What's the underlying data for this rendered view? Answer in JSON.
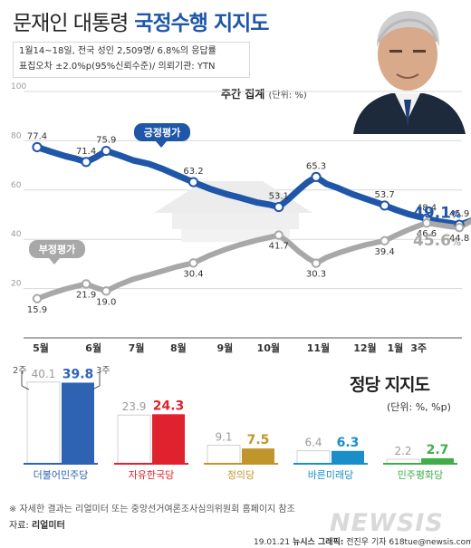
{
  "header": {
    "title_part1": "문재인 대통령",
    "title_part2": "국정수행 지지도",
    "info_line1": "1월14~18일, 전국 성인 2,509명/ 6.8%의 응답률",
    "info_line2": "표집오차 ±2.0%p(95%신뢰수준)/ 의뢰기관: YTN",
    "weekly_label": "주간 집계",
    "weekly_unit": "(단위: %)"
  },
  "colors": {
    "approve": "#1f56a8",
    "disapprove": "#a8a8a8",
    "grid": "#d9d9d9"
  },
  "chart_data": [
    {
      "type": "line",
      "ylim": [
        0,
        100
      ],
      "yticks": [
        20,
        40,
        60,
        80,
        100
      ],
      "xticks": [
        "5월",
        "6월",
        "7월",
        "8월",
        "9월",
        "10월",
        "11월",
        "12월",
        "1월",
        "3주"
      ],
      "grid": true,
      "series": [
        {
          "name": "긍정평가",
          "color": "#1f56a8",
          "labeled": [
            {
              "x": 0.0,
              "y": 77.4,
              "label": "77.4"
            },
            {
              "x": 1.05,
              "y": 71.4,
              "label": "71.4"
            },
            {
              "x": 1.48,
              "y": 75.9,
              "label": "75.9"
            },
            {
              "x": 3.35,
              "y": 63.2,
              "label": "63.2"
            },
            {
              "x": 5.18,
              "y": 53.1,
              "label": "53.1"
            },
            {
              "x": 5.98,
              "y": 65.3,
              "label": "65.3"
            },
            {
              "x": 7.45,
              "y": 53.7,
              "label": "53.7"
            },
            {
              "x": 8.35,
              "y": 48.4,
              "label": "48.4"
            },
            {
              "x": 9.05,
              "y": 45.9,
              "label": "45.9"
            },
            {
              "x": 9.58,
              "y": 49.6,
              "label": "49.6"
            },
            {
              "x": 9.82,
              "y": 49.1,
              "label": "49.1"
            }
          ],
          "values": [
            [
              0.0,
              77.4
            ],
            [
              0.3,
              75.5
            ],
            [
              0.6,
              73.8
            ],
            [
              0.85,
              72.6
            ],
            [
              1.05,
              71.4
            ],
            [
              1.25,
              73.2
            ],
            [
              1.48,
              75.9
            ],
            [
              1.75,
              74.2
            ],
            [
              2.05,
              72.1
            ],
            [
              2.4,
              70.6
            ],
            [
              2.7,
              68.5
            ],
            [
              3.0,
              66.0
            ],
            [
              3.35,
              63.2
            ],
            [
              3.7,
              60.5
            ],
            [
              4.05,
              58.4
            ],
            [
              4.35,
              56.9
            ],
            [
              4.7,
              55.0
            ],
            [
              5.0,
              54.0
            ],
            [
              5.18,
              53.1
            ],
            [
              5.4,
              56.5
            ],
            [
              5.6,
              60.0
            ],
            [
              5.8,
              63.2
            ],
            [
              5.98,
              65.3
            ],
            [
              6.2,
              62.5
            ],
            [
              6.45,
              60.8
            ],
            [
              6.75,
              58.4
            ],
            [
              7.05,
              56.4
            ],
            [
              7.3,
              54.8
            ],
            [
              7.45,
              53.7
            ],
            [
              7.7,
              51.9
            ],
            [
              7.95,
              50.3
            ],
            [
              8.15,
              49.3
            ],
            [
              8.35,
              48.4
            ],
            [
              8.6,
              47.3
            ],
            [
              8.85,
              46.6
            ],
            [
              9.05,
              45.9
            ],
            [
              9.3,
              47.5
            ],
            [
              9.58,
              49.6
            ],
            [
              9.82,
              49.1
            ]
          ]
        },
        {
          "name": "부정평가",
          "color": "#a8a8a8",
          "labeled": [
            {
              "x": 0.0,
              "y": 15.9,
              "label": "15.9"
            },
            {
              "x": 1.05,
              "y": 21.9,
              "label": "21.9"
            },
            {
              "x": 1.48,
              "y": 19.0,
              "label": "19.0"
            },
            {
              "x": 3.35,
              "y": 30.4,
              "label": "30.4"
            },
            {
              "x": 5.18,
              "y": 41.7,
              "label": "41.7"
            },
            {
              "x": 5.98,
              "y": 30.3,
              "label": "30.3"
            },
            {
              "x": 7.45,
              "y": 39.4,
              "label": "39.4"
            },
            {
              "x": 8.35,
              "y": 46.6,
              "label": "46.6"
            },
            {
              "x": 9.05,
              "y": 44.8,
              "label": "44.8"
            },
            {
              "x": 9.58,
              "y": 49.7,
              "label": "49.7"
            },
            {
              "x": 9.82,
              "y": 45.6,
              "label": "45.6"
            }
          ],
          "values": [
            [
              0.0,
              15.9
            ],
            [
              0.3,
              18.0
            ],
            [
              0.6,
              19.8
            ],
            [
              0.85,
              21.0
            ],
            [
              1.05,
              21.9
            ],
            [
              1.25,
              20.4
            ],
            [
              1.48,
              19.0
            ],
            [
              1.75,
              21.5
            ],
            [
              2.05,
              23.8
            ],
            [
              2.4,
              25.6
            ],
            [
              2.7,
              27.2
            ],
            [
              3.0,
              28.9
            ],
            [
              3.35,
              30.4
            ],
            [
              3.7,
              33.5
            ],
            [
              4.05,
              36.0
            ],
            [
              4.35,
              37.8
            ],
            [
              4.7,
              39.6
            ],
            [
              5.0,
              40.9
            ],
            [
              5.18,
              41.7
            ],
            [
              5.4,
              38.6
            ],
            [
              5.6,
              35.2
            ],
            [
              5.8,
              32.4
            ],
            [
              5.98,
              30.3
            ],
            [
              6.2,
              32.6
            ],
            [
              6.45,
              34.4
            ],
            [
              6.75,
              36.2
            ],
            [
              7.05,
              37.8
            ],
            [
              7.3,
              38.8
            ],
            [
              7.45,
              39.4
            ],
            [
              7.7,
              41.7
            ],
            [
              7.95,
              43.8
            ],
            [
              8.15,
              45.3
            ],
            [
              8.35,
              46.6
            ],
            [
              8.6,
              45.9
            ],
            [
              8.85,
              45.2
            ],
            [
              9.05,
              44.8
            ],
            [
              9.3,
              47.4
            ],
            [
              9.58,
              49.7
            ],
            [
              9.82,
              45.6
            ]
          ]
        }
      ],
      "annotations": {
        "approve_label": "긍정평가",
        "disapprove_label": "부정평가",
        "latest_approve": "49.1",
        "latest_disapprove": "45.6",
        "percent_sign": "%"
      }
    },
    {
      "type": "bar",
      "title": "정당 지지도",
      "unit": "(단위: %, %p)",
      "period_labels": [
        "2주",
        "3주"
      ],
      "categories": [
        "더불어민주당",
        "자유한국당",
        "정의당",
        "바른미래당",
        "민주평화당"
      ],
      "series": [
        {
          "name": "2주",
          "values": [
            40.1,
            23.9,
            9.1,
            6.4,
            2.2
          ]
        },
        {
          "name": "3주",
          "values": [
            39.8,
            24.3,
            7.5,
            6.3,
            2.7
          ]
        }
      ],
      "party_colors": [
        "#2e63b4",
        "#e0212e",
        "#c0962a",
        "#1a8ec9",
        "#3fae49"
      ]
    }
  ],
  "footer": {
    "note": "※ 자세한 결과는 리얼미터 또는 중앙선거여론조사심의위원회 홈페이지 참조",
    "source_label": "자료:",
    "source_value": "리얼미터",
    "credit_date": "19.01.21",
    "credit_agency": "뉴시스 그래픽:",
    "credit_person": "전진우 기자 618tue@newsis.com",
    "logo": "NEWSIS"
  }
}
